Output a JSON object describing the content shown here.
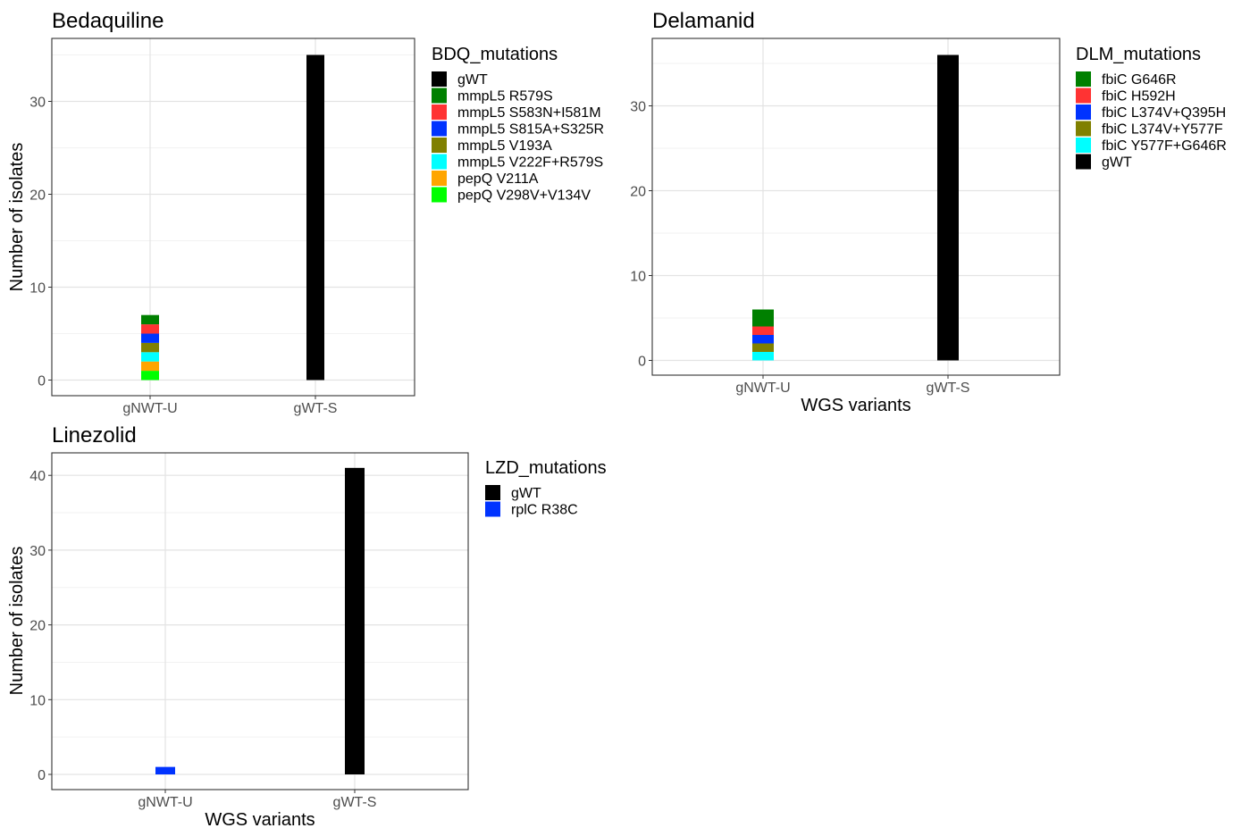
{
  "chart_data": [
    {
      "type": "bar",
      "stacked": true,
      "title": "Bedaquiline",
      "xlabel": "",
      "ylabel": "Number of isolates",
      "categories": [
        "gNWT-U",
        "gWT-S"
      ],
      "ylim": [
        0,
        35
      ],
      "yticks": [
        0,
        10,
        20,
        30
      ],
      "grid": true,
      "legend_position": "right",
      "legend_title": "BDQ_mutations",
      "series": [
        {
          "name": "gWT",
          "color": "#000000",
          "values": [
            0,
            35
          ]
        },
        {
          "name": "mmpL5 R579S",
          "color": "#008000",
          "values": [
            1,
            0
          ]
        },
        {
          "name": "mmpL5 S583N+I581M",
          "color": "#ff3333",
          "values": [
            1,
            0
          ]
        },
        {
          "name": "mmpL5 S815A+S325R",
          "color": "#0033ff",
          "values": [
            1,
            0
          ]
        },
        {
          "name": "mmpL5 V193A",
          "color": "#808000",
          "values": [
            1,
            0
          ]
        },
        {
          "name": "mmpL5 V222F+R579S",
          "color": "#00ffff",
          "values": [
            1,
            0
          ]
        },
        {
          "name": "pepQ V211A",
          "color": "#ffa500",
          "values": [
            1,
            0
          ]
        },
        {
          "name": "pepQ V298V+V134V",
          "color": "#00ff00",
          "values": [
            1,
            0
          ]
        }
      ]
    },
    {
      "type": "bar",
      "stacked": true,
      "title": "Delamanid",
      "xlabel": "WGS variants",
      "ylabel": "",
      "categories": [
        "gNWT-U",
        "gWT-S"
      ],
      "ylim": [
        0,
        36
      ],
      "yticks": [
        0,
        10,
        20,
        30
      ],
      "grid": true,
      "legend_position": "right",
      "legend_title": "DLM_mutations",
      "series": [
        {
          "name": "fbiC G646R",
          "color": "#008000",
          "values": [
            2,
            0
          ]
        },
        {
          "name": "fbiC H592H",
          "color": "#ff3333",
          "values": [
            1,
            0
          ]
        },
        {
          "name": "fbiC L374V+Q395H",
          "color": "#0033ff",
          "values": [
            1,
            0
          ]
        },
        {
          "name": "fbiC L374V+Y577F",
          "color": "#808000",
          "values": [
            1,
            0
          ]
        },
        {
          "name": "fbiC Y577F+G646R",
          "color": "#00ffff",
          "values": [
            1,
            0
          ]
        },
        {
          "name": "gWT",
          "color": "#000000",
          "values": [
            0,
            36
          ]
        }
      ]
    },
    {
      "type": "bar",
      "stacked": true,
      "title": "Linezolid",
      "xlabel": "WGS variants",
      "ylabel": "Number of isolates",
      "categories": [
        "gNWT-U",
        "gWT-S"
      ],
      "ylim": [
        0,
        41
      ],
      "yticks": [
        0,
        10,
        20,
        30,
        40
      ],
      "grid": true,
      "legend_position": "right",
      "legend_title": "LZD_mutations",
      "series": [
        {
          "name": "gWT",
          "color": "#000000",
          "values": [
            0,
            41
          ]
        },
        {
          "name": "rplC R38C",
          "color": "#0033ff",
          "values": [
            1,
            0
          ]
        }
      ]
    }
  ]
}
